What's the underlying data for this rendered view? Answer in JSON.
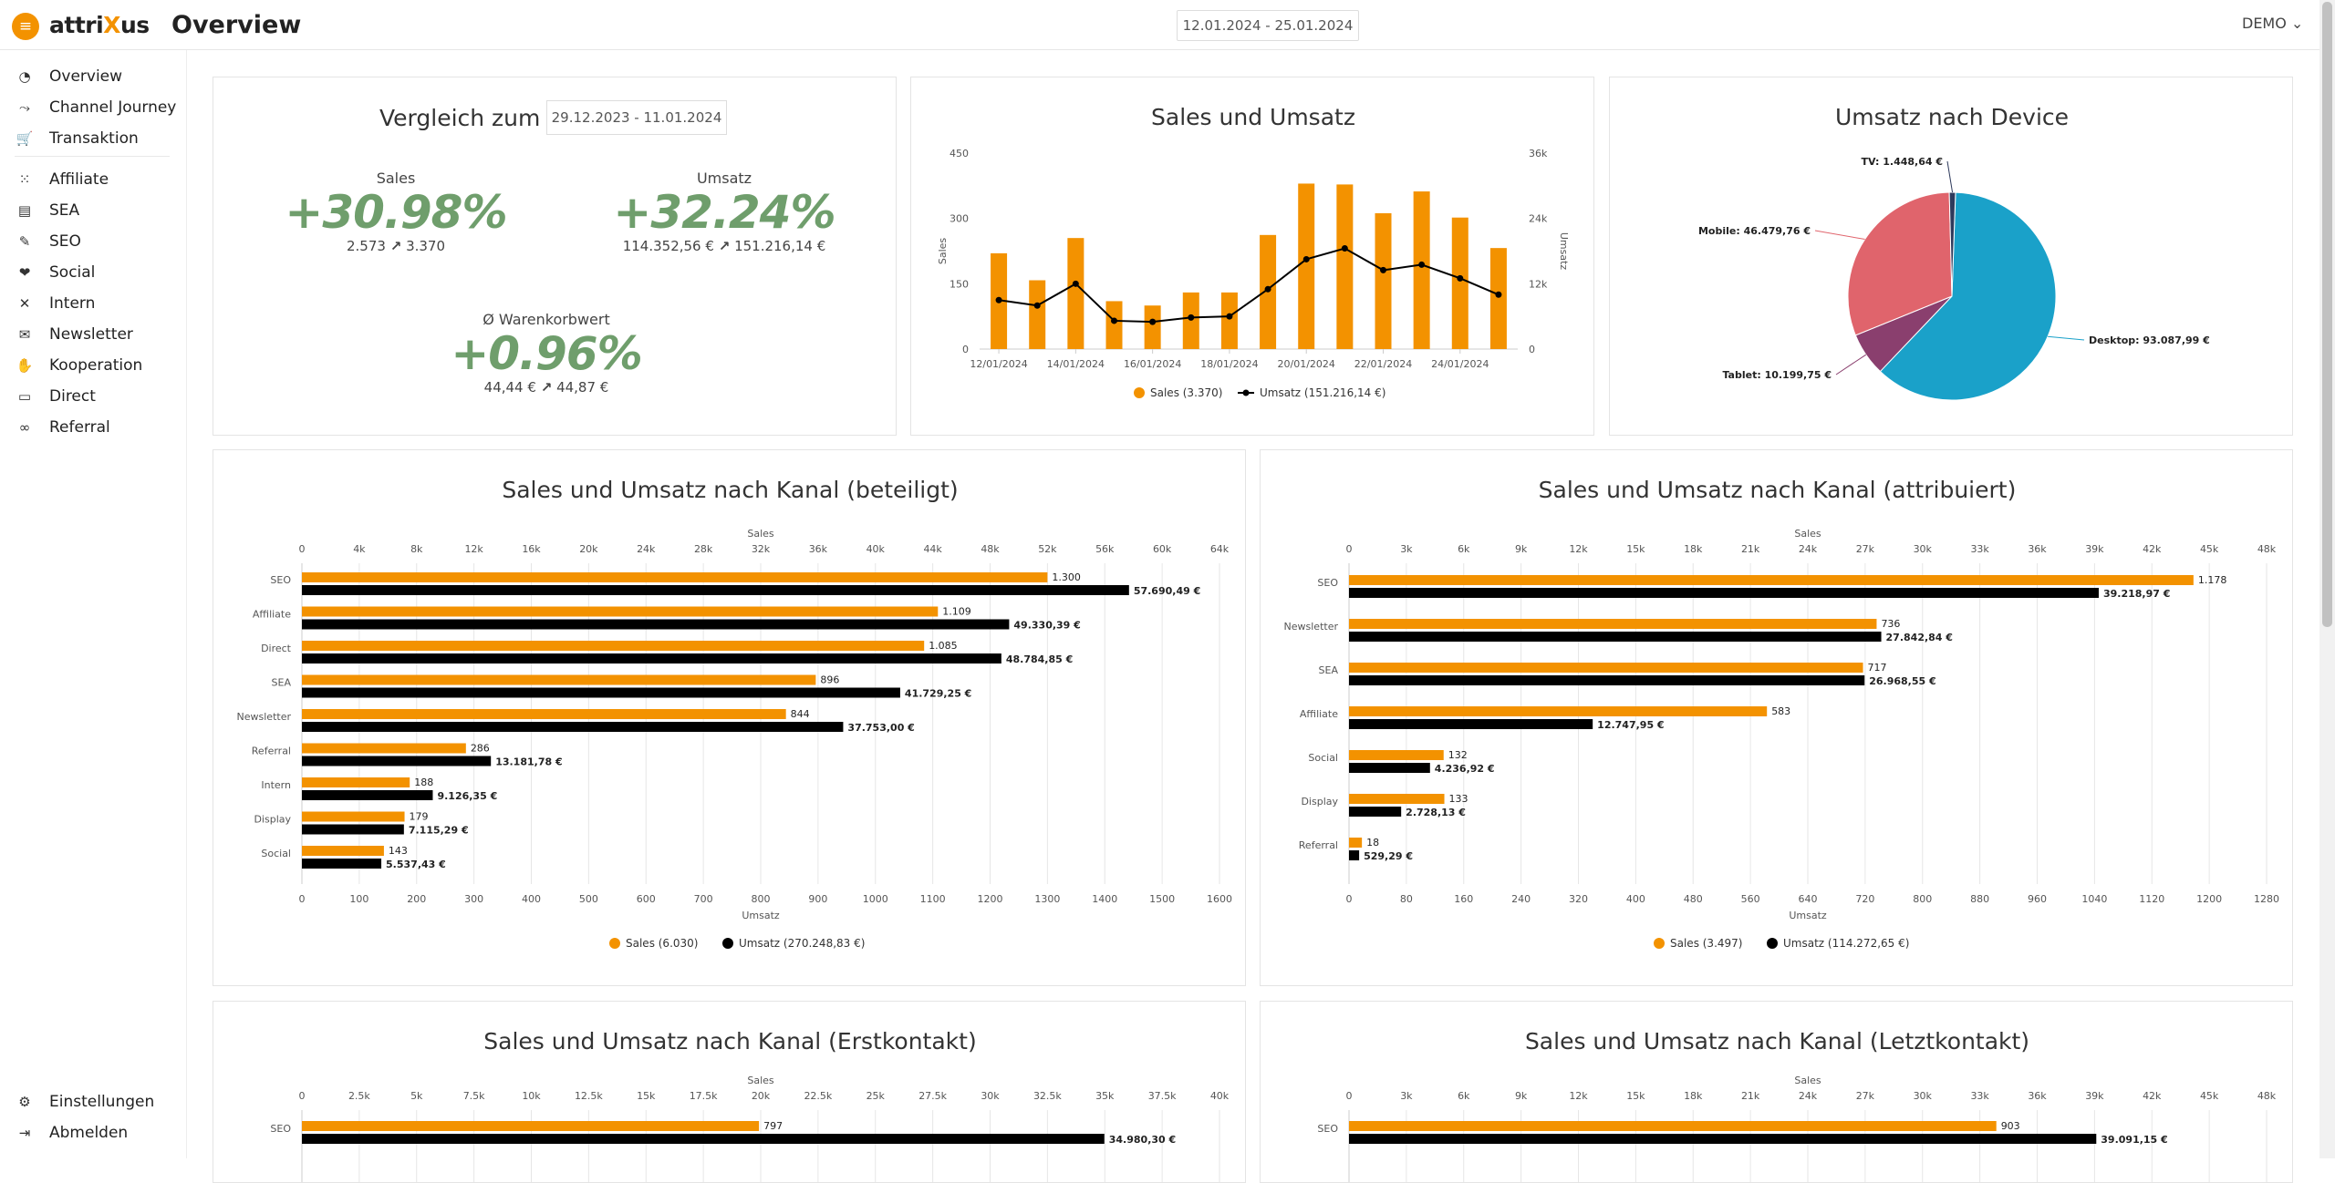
{
  "app": {
    "logo_a": "attri",
    "logo_x": "X",
    "logo_b": "us",
    "page_title": "Overview",
    "date_range": "12.01.2024 - 25.01.2024",
    "user": "DEMO"
  },
  "nav": {
    "items": [
      {
        "label": "Overview",
        "icon": "◔"
      },
      {
        "label": "Channel Journey",
        "icon": "⤳"
      },
      {
        "label": "Transaktion",
        "icon": "🛒"
      },
      {
        "label": "Affiliate",
        "icon": "⁙"
      },
      {
        "label": "SEA",
        "icon": "▤"
      },
      {
        "label": "SEO",
        "icon": "✎"
      },
      {
        "label": "Social",
        "icon": "❤"
      },
      {
        "label": "Intern",
        "icon": "✕"
      },
      {
        "label": "Newsletter",
        "icon": "✉"
      },
      {
        "label": "Kooperation",
        "icon": "✋"
      },
      {
        "label": "Direct",
        "icon": "▭"
      },
      {
        "label": "Referral",
        "icon": "∞"
      }
    ],
    "settings": "Einstellungen",
    "logout": "Abmelden"
  },
  "compare": {
    "title": "Vergleich zum",
    "date": "29.12.2023 - 11.01.2024",
    "sales": {
      "label": "Sales",
      "pct": "+30.98%",
      "from": "2.573",
      "to": "3.370"
    },
    "umsatz": {
      "label": "Umsatz",
      "pct": "+32.24%",
      "from": "114.352,56 €",
      "to": "151.216,14 €"
    },
    "wk": {
      "label": "Ø Warenkorbwert",
      "pct": "+0.96%",
      "from": "44,44 €",
      "to": "44,87 €"
    }
  },
  "colors": {
    "orange": "#f39200",
    "black": "#000000",
    "desktop": "#1aa1c9",
    "mobile": "#e0646c",
    "tablet": "#8a3f6e",
    "tv": "#2e3a5c"
  },
  "chart_data": [
    {
      "id": "sales_umsatz",
      "type": "bar+line",
      "title": "Sales und Umsatz",
      "categories": [
        "12/01/2024",
        "13/01/2024",
        "14/01/2024",
        "15/01/2024",
        "16/01/2024",
        "17/01/2024",
        "18/01/2024",
        "19/01/2024",
        "20/01/2024",
        "21/01/2024",
        "22/01/2024",
        "23/01/2024",
        "24/01/2024",
        "25/01/2024"
      ],
      "xticks": [
        "12/01/2024",
        "14/01/2024",
        "16/01/2024",
        "18/01/2024",
        "20/01/2024",
        "22/01/2024",
        "24/01/2024"
      ],
      "series": [
        {
          "name": "Sales (3.370)",
          "type": "bar",
          "axis": "left",
          "values": [
            220,
            158,
            255,
            110,
            100,
            130,
            130,
            262,
            380,
            378,
            312,
            362,
            302,
            232
          ]
        },
        {
          "name": "Umsatz (151.216,14 €)",
          "type": "line",
          "axis": "right",
          "values": [
            9000,
            8000,
            12000,
            5200,
            5000,
            5800,
            6000,
            11000,
            16500,
            18500,
            14500,
            15500,
            13000,
            10000
          ]
        }
      ],
      "ylabel": "Sales",
      "y2label": "Umsatz",
      "ylim": [
        0,
        450
      ],
      "y2lim": [
        0,
        36000
      ],
      "yticks": [
        "0",
        "150",
        "300",
        "450"
      ],
      "y2ticks": [
        "0",
        "12k",
        "24k",
        "36k"
      ]
    },
    {
      "id": "device",
      "type": "pie",
      "title": "Umsatz nach Device",
      "slices": [
        {
          "label": "Desktop: 93.087,99 €",
          "value": 93087.99,
          "color": "#1aa1c9"
        },
        {
          "label": "Tablet: 10.199,75 €",
          "value": 10199.75,
          "color": "#8a3f6e"
        },
        {
          "label": "Mobile: 46.479,76 €",
          "value": 46479.76,
          "color": "#e0646c"
        },
        {
          "label": "TV: 1.448,64 €",
          "value": 1448.64,
          "color": "#2e3a5c"
        }
      ]
    },
    {
      "id": "beteiligt",
      "type": "hbar",
      "title": "Sales und Umsatz nach Kanal (beteiligt)",
      "categories": [
        "SEO",
        "Affiliate",
        "Direct",
        "SEA",
        "Newsletter",
        "Referral",
        "Intern",
        "Display",
        "Social"
      ],
      "series": [
        {
          "name": "Sales (6.030)",
          "axis": "bottom",
          "values": [
            1300,
            1109,
            1085,
            896,
            844,
            286,
            188,
            179,
            143
          ],
          "labels": [
            "1.300",
            "1.109",
            "1.085",
            "896",
            "844",
            "286",
            "188",
            "179",
            "143"
          ]
        },
        {
          "name": "Umsatz (270.248,83 €)",
          "axis": "top",
          "values": [
            57690.49,
            49330.39,
            48784.85,
            41729.25,
            37753.0,
            13181.78,
            9126.35,
            7115.29,
            5537.43
          ],
          "labels": [
            "57.690,49 €",
            "49.330,39 €",
            "48.784,85 €",
            "41.729,25 €",
            "37.753,00 €",
            "13.181,78 €",
            "9.126,35 €",
            "7.115,29 €",
            "5.537,43 €"
          ]
        }
      ],
      "toplabel": "Sales",
      "bottomlabel": "Umsatz",
      "toplim": [
        0,
        64000
      ],
      "bottomlim": [
        0,
        1600
      ],
      "topticks": [
        "0",
        "4k",
        "8k",
        "12k",
        "16k",
        "20k",
        "24k",
        "28k",
        "32k",
        "36k",
        "40k",
        "44k",
        "48k",
        "52k",
        "56k",
        "60k",
        "64k"
      ],
      "bottomticks": [
        "0",
        "100",
        "200",
        "300",
        "400",
        "500",
        "600",
        "700",
        "800",
        "900",
        "1000",
        "1100",
        "1200",
        "1300",
        "1400",
        "1500",
        "1600"
      ]
    },
    {
      "id": "attribuiert",
      "type": "hbar",
      "title": "Sales und Umsatz nach Kanal (attribuiert)",
      "categories": [
        "SEO",
        "Newsletter",
        "SEA",
        "Affiliate",
        "Social",
        "Display",
        "Referral"
      ],
      "series": [
        {
          "name": "Sales (3.497)",
          "axis": "bottom",
          "values": [
            1178,
            736,
            717,
            583,
            132,
            133,
            18
          ],
          "labels": [
            "1.178",
            "736",
            "717",
            "583",
            "132",
            "133",
            "18"
          ]
        },
        {
          "name": "Umsatz (114.272,65 €)",
          "axis": "top",
          "values": [
            39218.97,
            27842.84,
            26968.55,
            12747.95,
            4236.92,
            2728.13,
            529.29
          ],
          "labels": [
            "39.218,97 €",
            "27.842,84 €",
            "26.968,55 €",
            "12.747,95 €",
            "4.236,92 €",
            "2.728,13 €",
            "529,29 €"
          ]
        }
      ],
      "toplabel": "Sales",
      "bottomlabel": "Umsatz",
      "toplim": [
        0,
        48000
      ],
      "bottomlim": [
        0,
        1280
      ],
      "topticks": [
        "0",
        "3k",
        "6k",
        "9k",
        "12k",
        "15k",
        "18k",
        "21k",
        "24k",
        "27k",
        "30k",
        "33k",
        "36k",
        "39k",
        "42k",
        "45k",
        "48k"
      ],
      "bottomticks": [
        "0",
        "80",
        "160",
        "240",
        "320",
        "400",
        "480",
        "560",
        "640",
        "720",
        "800",
        "880",
        "960",
        "1040",
        "1120",
        "1200",
        "1280"
      ]
    },
    {
      "id": "erstkontakt",
      "type": "hbar",
      "title": "Sales und Umsatz nach Kanal (Erstkontakt)",
      "categories": [
        "SEO"
      ],
      "series": [
        {
          "name": "Sales",
          "axis": "bottom",
          "values": [
            797
          ],
          "labels": [
            "797"
          ]
        },
        {
          "name": "Umsatz",
          "axis": "top",
          "values": [
            34980.3
          ],
          "labels": [
            "34.980,30 €"
          ]
        }
      ],
      "toplabel": "Sales",
      "toplim": [
        0,
        40000
      ],
      "topticks": [
        "0",
        "2.5k",
        "5k",
        "7.5k",
        "10k",
        "12.5k",
        "15k",
        "17.5k",
        "20k",
        "22.5k",
        "25k",
        "27.5k",
        "30k",
        "32.5k",
        "35k",
        "37.5k",
        "40k"
      ]
    },
    {
      "id": "letztkontakt",
      "type": "hbar",
      "title": "Sales und Umsatz nach Kanal (Letztkontakt)",
      "categories": [
        "SEO"
      ],
      "series": [
        {
          "name": "Sales",
          "axis": "bottom",
          "values": [
            903
          ],
          "labels": [
            "903"
          ]
        },
        {
          "name": "Umsatz",
          "axis": "top",
          "values": [
            39091.15
          ],
          "labels": [
            "39.091,15 €"
          ]
        }
      ],
      "toplabel": "Sales",
      "toplim": [
        0,
        48000
      ],
      "topticks": [
        "0",
        "3k",
        "6k",
        "9k",
        "12k",
        "15k",
        "18k",
        "21k",
        "24k",
        "27k",
        "30k",
        "33k",
        "36k",
        "39k",
        "42k",
        "45k",
        "48k"
      ]
    }
  ]
}
